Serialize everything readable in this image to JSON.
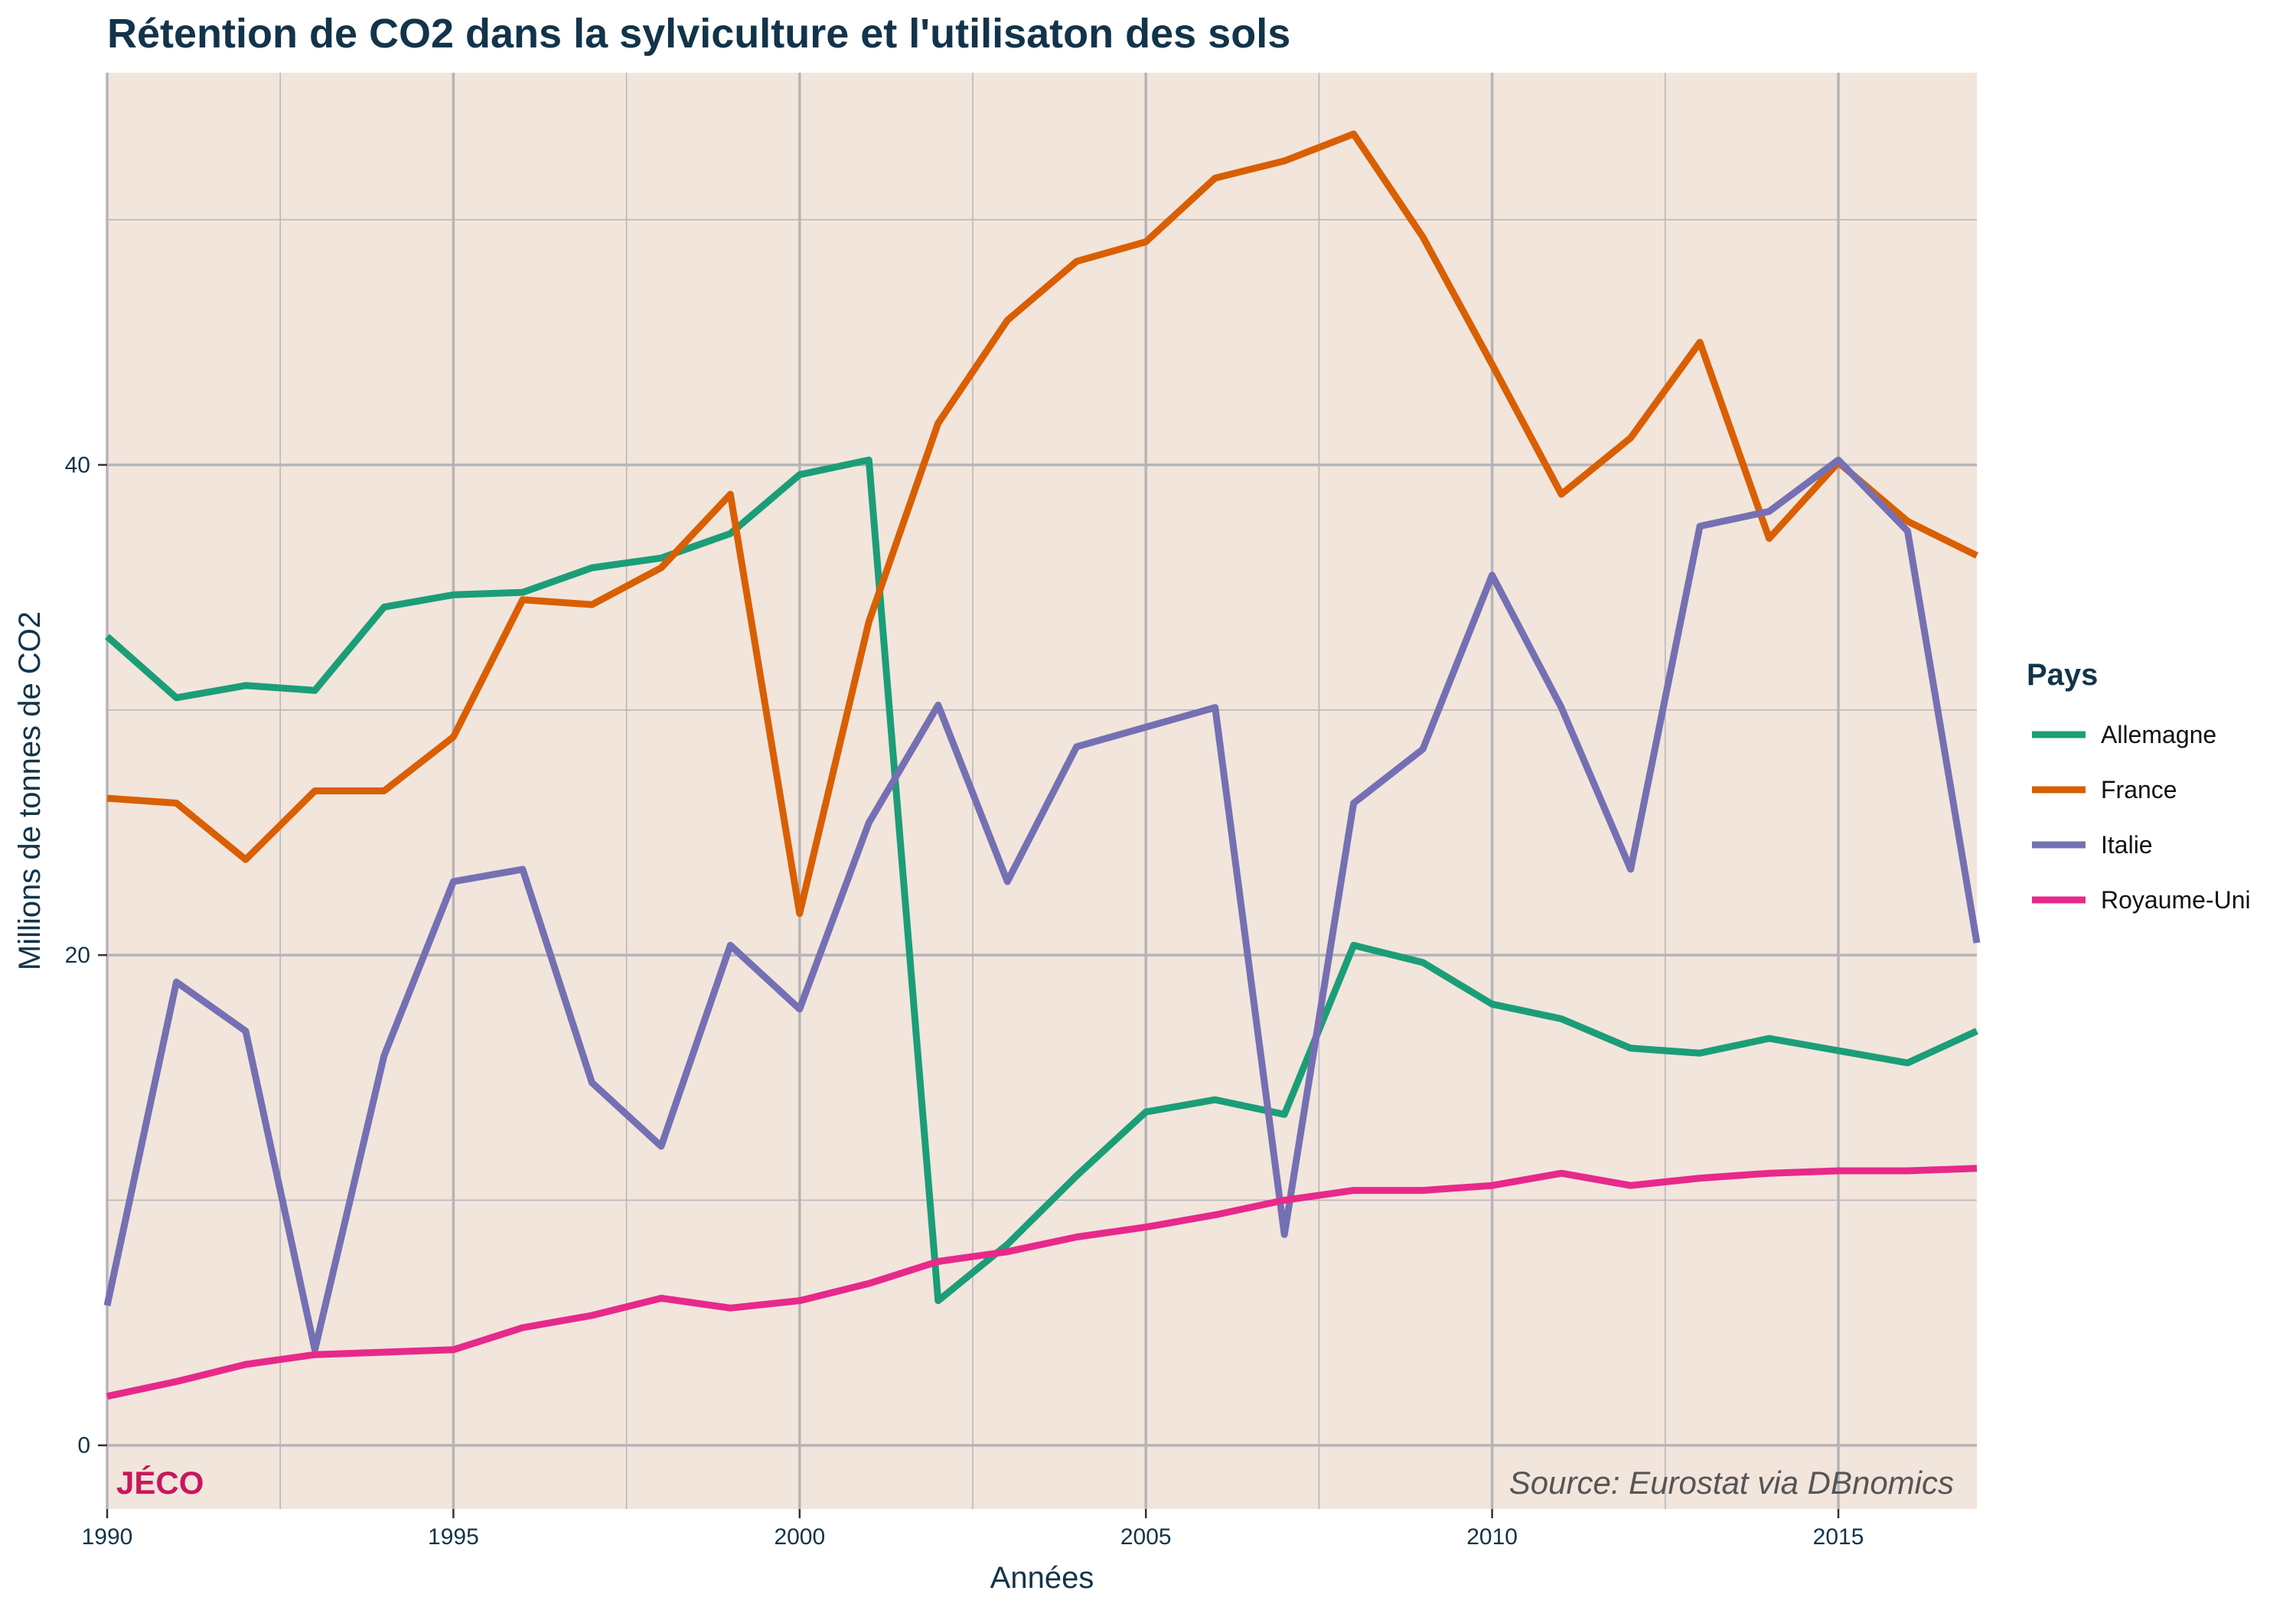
{
  "chart_data": {
    "type": "line",
    "title": "Rétention de CO2 dans la sylviculture et l'utilisaton des sols",
    "xlabel": "Années",
    "ylabel": "Millions de tonnes de CO2",
    "xlim": [
      1990,
      2017
    ],
    "ylim": [
      -2.6,
      56
    ],
    "x_ticks": [
      1990,
      1995,
      2000,
      2005,
      2010,
      2015
    ],
    "y_ticks": [
      0,
      20,
      40
    ],
    "grid": true,
    "legend_title": "Pays",
    "legend_position": "right",
    "plot_background": "#f2e5dc",
    "grid_color": "#b5b5b8",
    "logo_text": "JÉCO",
    "source_text": "Source: Eurostat via DBnomics",
    "x": [
      1990,
      1991,
      1992,
      1993,
      1994,
      1995,
      1996,
      1997,
      1998,
      1999,
      2000,
      2001,
      2002,
      2003,
      2004,
      2005,
      2006,
      2007,
      2008,
      2009,
      2010,
      2011,
      2012,
      2013,
      2014,
      2015,
      2016,
      2017
    ],
    "series": [
      {
        "name": "Allemagne",
        "color": "#1b9e77",
        "values": [
          33.0,
          30.5,
          31.0,
          30.8,
          34.2,
          34.7,
          34.8,
          35.8,
          36.2,
          37.2,
          39.6,
          40.2,
          5.9,
          8.2,
          11.0,
          13.6,
          14.1,
          13.5,
          20.4,
          19.7,
          18.0,
          17.4,
          16.2,
          16.0,
          16.6,
          16.1,
          15.6,
          16.9
        ]
      },
      {
        "name": "France",
        "color": "#d95f02",
        "values": [
          26.4,
          26.2,
          23.9,
          26.7,
          26.7,
          28.9,
          34.5,
          34.3,
          35.8,
          38.8,
          21.7,
          33.6,
          41.7,
          45.9,
          48.3,
          49.1,
          51.7,
          52.4,
          53.5,
          49.3,
          44.1,
          38.8,
          41.1,
          45.0,
          37.0,
          40.1,
          37.7,
          36.3
        ]
      },
      {
        "name": "Italie",
        "color": "#7570b3",
        "values": [
          5.7,
          18.9,
          16.9,
          3.9,
          15.9,
          23.0,
          23.5,
          14.8,
          12.2,
          20.4,
          17.8,
          25.4,
          30.2,
          23.0,
          28.5,
          29.3,
          30.1,
          8.6,
          26.2,
          28.4,
          35.5,
          30.1,
          23.5,
          37.5,
          38.1,
          40.2,
          37.3,
          20.5
        ]
      },
      {
        "name": "Royaume-Uni",
        "color": "#e7298a",
        "values": [
          2.0,
          2.6,
          3.3,
          3.7,
          3.8,
          3.9,
          4.8,
          5.3,
          6.0,
          5.6,
          5.9,
          6.6,
          7.5,
          7.9,
          8.5,
          8.9,
          9.4,
          10.0,
          10.4,
          10.4,
          10.6,
          11.1,
          10.6,
          10.9,
          11.1,
          11.2,
          11.2,
          11.3
        ]
      }
    ]
  }
}
